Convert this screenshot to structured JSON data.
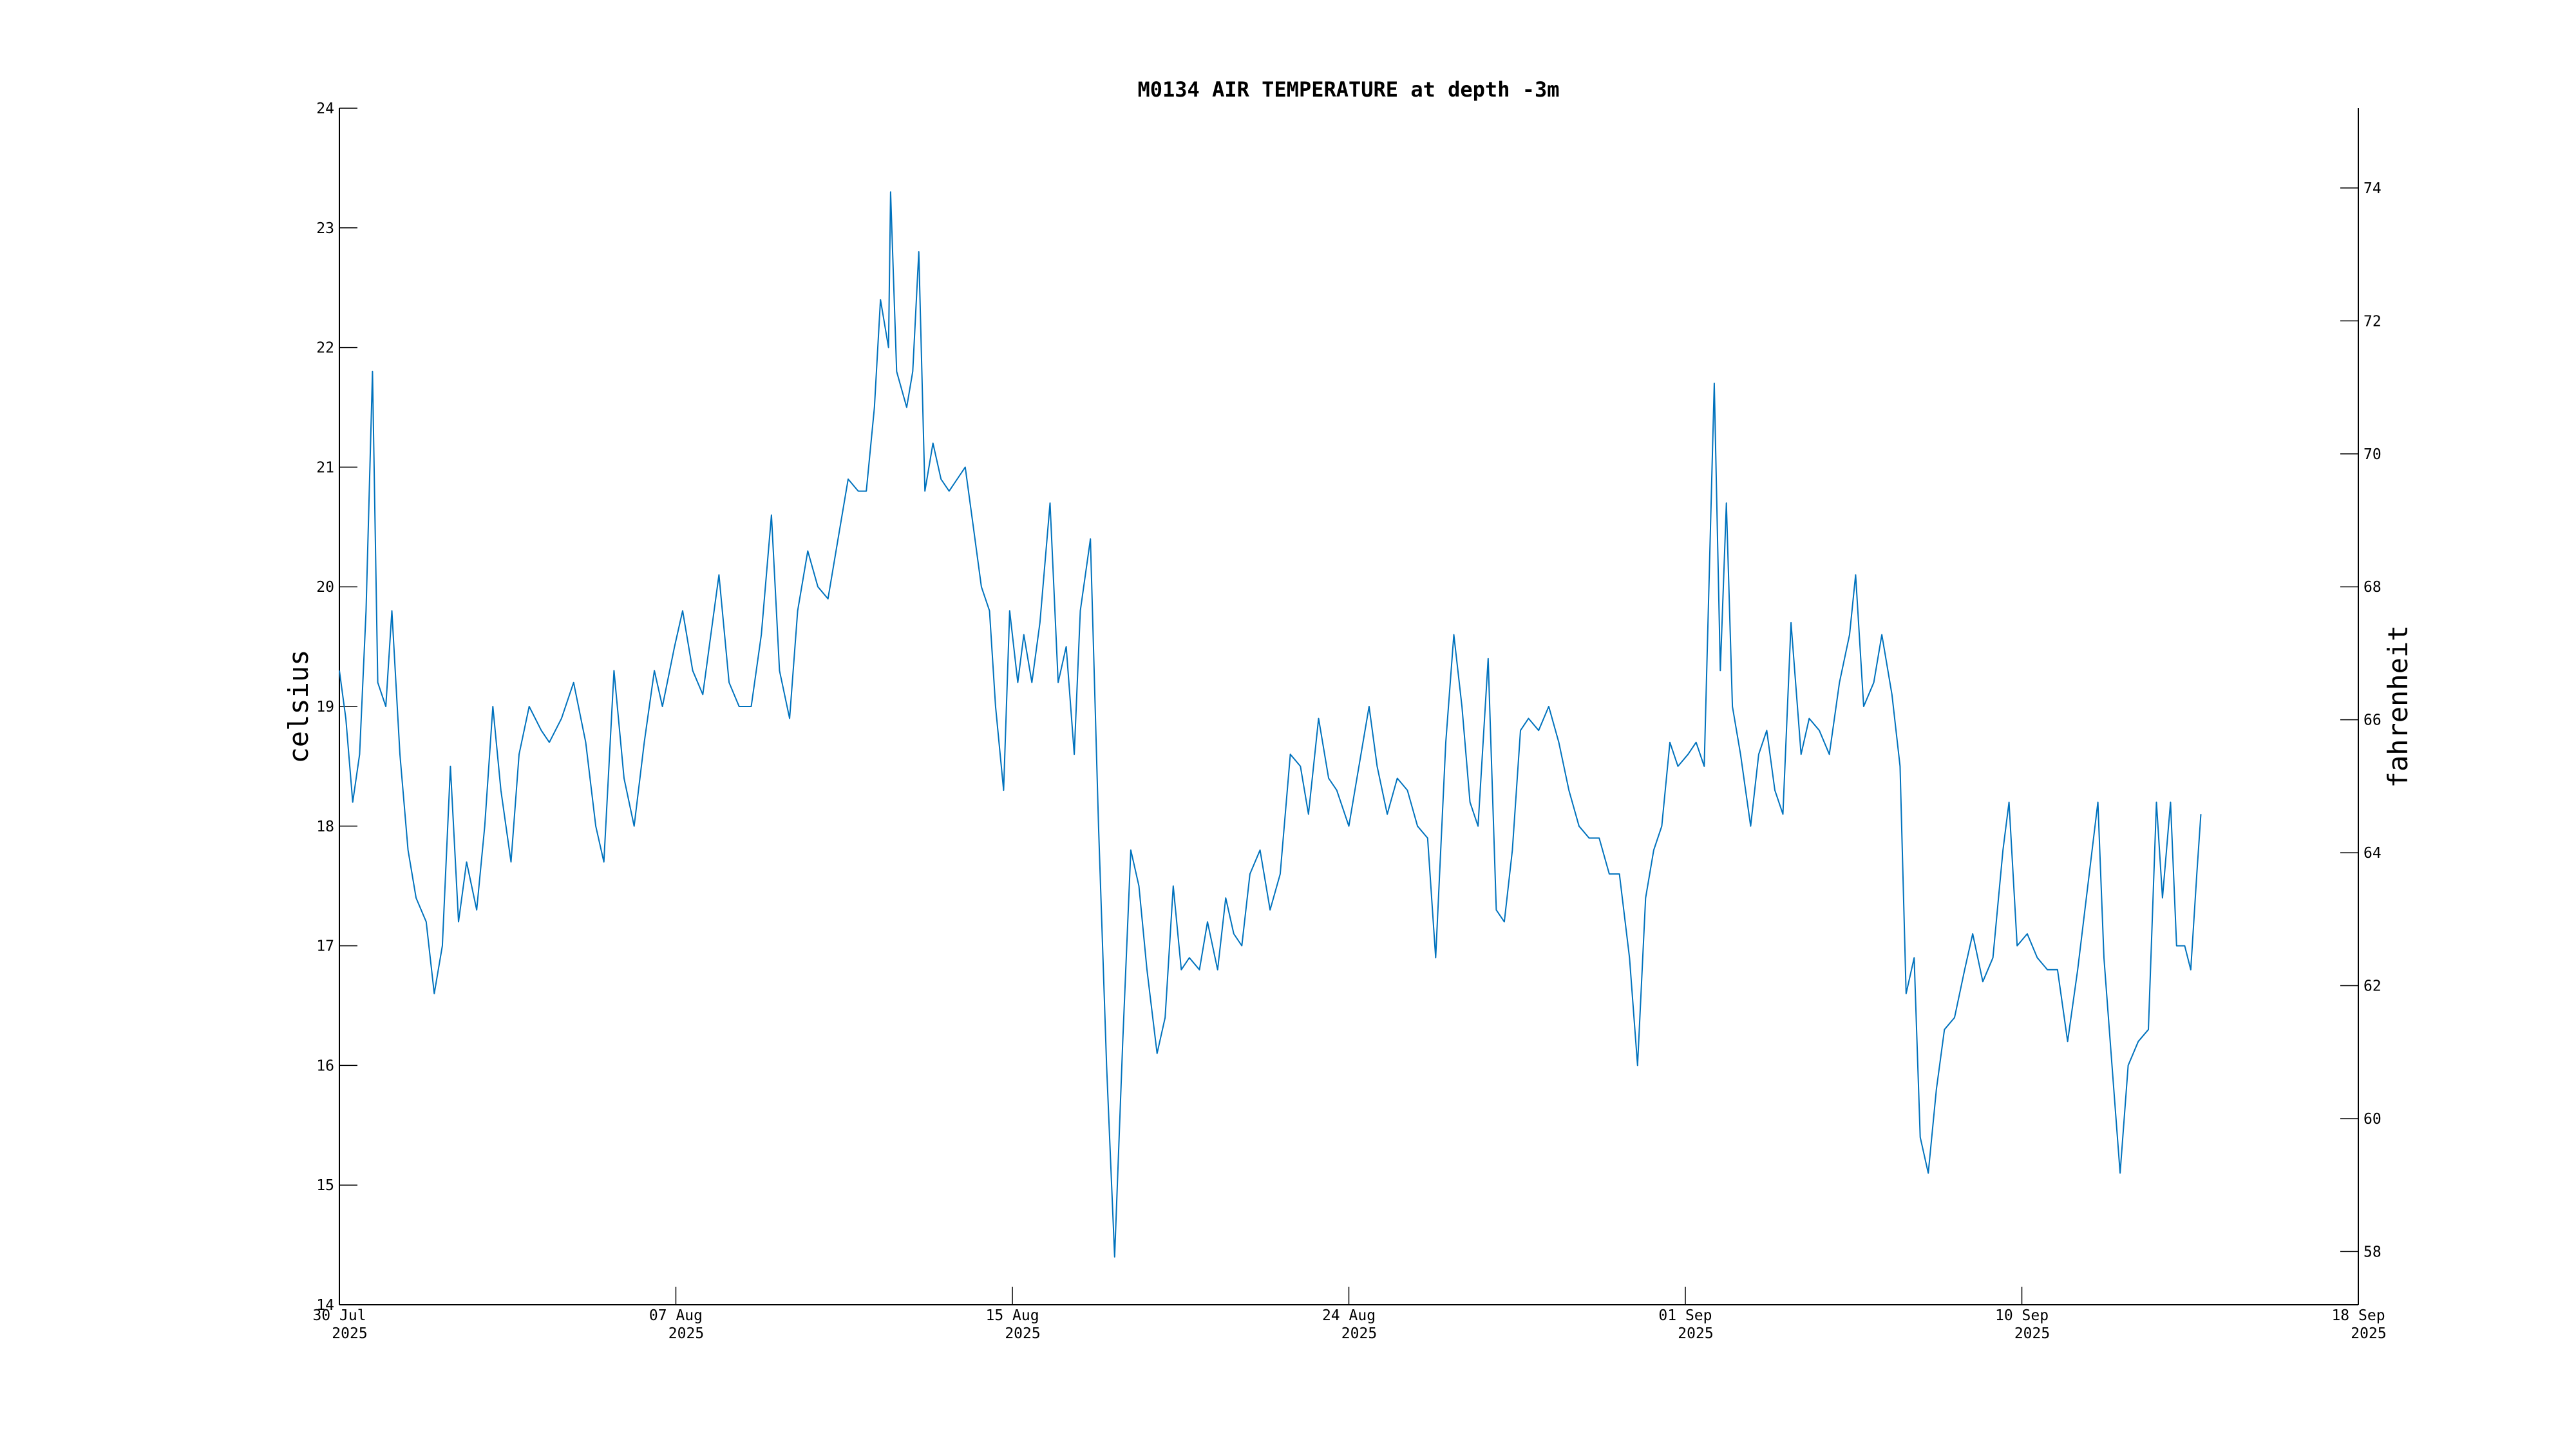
{
  "chart_data": {
    "type": "line",
    "title": "M0134 AIR TEMPERATURE at depth -3m",
    "ylabel": "celsius",
    "y2label": "fahrenheit",
    "xlim": [
      0,
      50
    ],
    "xticks": [
      {
        "value": 0,
        "label": "30 Jul",
        "sublabel": "2025"
      },
      {
        "value": 8.333,
        "label": "07 Aug",
        "sublabel": "2025"
      },
      {
        "value": 16.667,
        "label": "15 Aug",
        "sublabel": "2025"
      },
      {
        "value": 25,
        "label": "24 Aug",
        "sublabel": "2025"
      },
      {
        "value": 33.333,
        "label": "01 Sep",
        "sublabel": "2025"
      },
      {
        "value": 41.667,
        "label": "10 Sep",
        "sublabel": "2025"
      },
      {
        "value": 50,
        "label": "18 Sep",
        "sublabel": "2025"
      }
    ],
    "ylim": [
      14,
      24
    ],
    "yticks": [
      14,
      15,
      16,
      17,
      18,
      19,
      20,
      21,
      22,
      23,
      24
    ],
    "y2lim": [
      57.2,
      75.2
    ],
    "y2ticks": [
      58,
      60,
      62,
      64,
      66,
      68,
      70,
      72,
      74
    ],
    "color": "#0072bd",
    "x": [
      0,
      0.16,
      0.33,
      0.5,
      0.66,
      0.82,
      0.95,
      1.15,
      1.3,
      1.5,
      1.7,
      1.9,
      2.15,
      2.35,
      2.55,
      2.75,
      2.95,
      3.15,
      3.4,
      3.6,
      3.8,
      4.0,
      4.25,
      4.45,
      4.7,
      5.0,
      5.2,
      5.5,
      5.8,
      6.1,
      6.35,
      6.55,
      6.8,
      7.05,
      7.3,
      7.55,
      7.8,
      8.0,
      8.3,
      8.5,
      8.75,
      9.0,
      9.2,
      9.4,
      9.65,
      9.9,
      10.2,
      10.45,
      10.7,
      10.9,
      11.15,
      11.35,
      11.6,
      11.85,
      12.1,
      12.35,
      12.6,
      12.85,
      13.05,
      13.25,
      13.4,
      13.6,
      13.65,
      13.8,
      14.05,
      14.2,
      14.35,
      14.5,
      14.7,
      14.9,
      15.1,
      15.3,
      15.5,
      15.7,
      15.9,
      16.1,
      16.25,
      16.45,
      16.6,
      16.8,
      16.95,
      17.15,
      17.35,
      17.6,
      17.8,
      18.0,
      18.2,
      18.35,
      18.6,
      18.8,
      19.0,
      19.2,
      19.4,
      19.6,
      19.8,
      20.0,
      20.25,
      20.45,
      20.65,
      20.85,
      21.05,
      21.3,
      21.5,
      21.75,
      21.95,
      22.15,
      22.35,
      22.55,
      22.8,
      23.05,
      23.3,
      23.55,
      23.8,
      24.0,
      24.25,
      24.5,
      24.7,
      25.0,
      25.2,
      25.5,
      25.7,
      25.95,
      26.2,
      26.45,
      26.7,
      26.95,
      27.15,
      27.4,
      27.6,
      27.8,
      28.0,
      28.2,
      28.45,
      28.65,
      28.85,
      29.05,
      29.25,
      29.45,
      29.7,
      29.95,
      30.2,
      30.45,
      30.7,
      30.95,
      31.2,
      31.45,
      31.7,
      31.95,
      32.15,
      32.35,
      32.55,
      32.75,
      32.95,
      33.15,
      33.4,
      33.6,
      33.8,
      34.05,
      34.2,
      34.35,
      34.5,
      34.7,
      34.95,
      35.15,
      35.35,
      35.55,
      35.75,
      35.95,
      36.2,
      36.4,
      36.65,
      36.9,
      37.15,
      37.4,
      37.55,
      37.75,
      38.0,
      38.2,
      38.45,
      38.65,
      38.8,
      39.0,
      39.15,
      39.35,
      39.55,
      39.75,
      40.0,
      40.25,
      40.45,
      40.7,
      40.95,
      41.2,
      41.35,
      41.55,
      41.8,
      42.05,
      42.3,
      42.55,
      42.8,
      43.05,
      43.3,
      43.55,
      43.7,
      43.9,
      44.1,
      44.3,
      44.55,
      44.8,
      45.0,
      45.15,
      45.35,
      45.5,
      45.7,
      45.85,
      46.0,
      46.1
    ],
    "values": [
      19.3,
      18.9,
      18.2,
      18.6,
      19.8,
      21.8,
      19.2,
      19.0,
      19.8,
      18.6,
      17.8,
      17.4,
      17.2,
      16.6,
      17.0,
      18.5,
      17.2,
      17.7,
      17.3,
      18.0,
      19.0,
      18.3,
      17.7,
      18.6,
      19.0,
      18.8,
      18.7,
      18.9,
      19.2,
      18.7,
      18.0,
      17.7,
      19.3,
      18.4,
      18.0,
      18.7,
      19.3,
      19.0,
      19.5,
      19.8,
      19.3,
      19.1,
      19.6,
      20.1,
      19.2,
      19.0,
      19.0,
      19.6,
      20.6,
      19.3,
      18.9,
      19.8,
      20.3,
      20.0,
      19.9,
      20.4,
      20.9,
      20.8,
      20.8,
      21.5,
      22.4,
      22.0,
      23.3,
      21.8,
      21.5,
      21.8,
      22.8,
      20.8,
      21.2,
      20.9,
      20.8,
      20.9,
      21.0,
      20.5,
      20.0,
      19.8,
      19.0,
      18.3,
      19.8,
      19.2,
      19.6,
      19.2,
      19.7,
      20.7,
      19.2,
      19.5,
      18.6,
      19.8,
      20.4,
      18.0,
      16.0,
      14.4,
      16.2,
      17.8,
      17.5,
      16.8,
      16.1,
      16.4,
      17.5,
      16.8,
      16.9,
      16.8,
      17.2,
      16.8,
      17.4,
      17.1,
      17.0,
      17.6,
      17.8,
      17.3,
      17.6,
      18.6,
      18.5,
      18.1,
      18.9,
      18.4,
      18.3,
      18.0,
      18.4,
      19.0,
      18.5,
      18.1,
      18.4,
      18.3,
      18.0,
      17.9,
      16.9,
      18.7,
      19.6,
      19.0,
      18.2,
      18.0,
      19.4,
      17.3,
      17.2,
      17.8,
      18.8,
      18.9,
      18.8,
      19.0,
      18.7,
      18.3,
      18.0,
      17.9,
      17.9,
      17.6,
      17.6,
      16.9,
      16.0,
      17.4,
      17.8,
      18.0,
      18.7,
      18.5,
      18.6,
      18.7,
      18.5,
      21.7,
      19.3,
      20.7,
      19.0,
      18.6,
      18.0,
      18.6,
      18.8,
      18.3,
      18.1,
      19.7,
      18.6,
      18.9,
      18.8,
      18.6,
      19.2,
      19.6,
      20.1,
      19.0,
      19.2,
      19.6,
      19.1,
      18.5,
      16.6,
      16.9,
      15.4,
      15.1,
      15.8,
      16.3,
      16.4,
      16.8,
      17.1,
      16.7,
      16.9,
      17.8,
      18.2,
      17.0,
      17.1,
      16.9,
      16.8,
      16.8,
      16.2,
      16.8,
      17.5,
      18.2,
      16.9,
      16.0,
      15.1,
      16.0,
      16.2,
      16.3,
      18.2,
      17.4,
      18.2,
      17.0,
      17.0,
      16.8,
      17.6,
      18.1
    ]
  }
}
